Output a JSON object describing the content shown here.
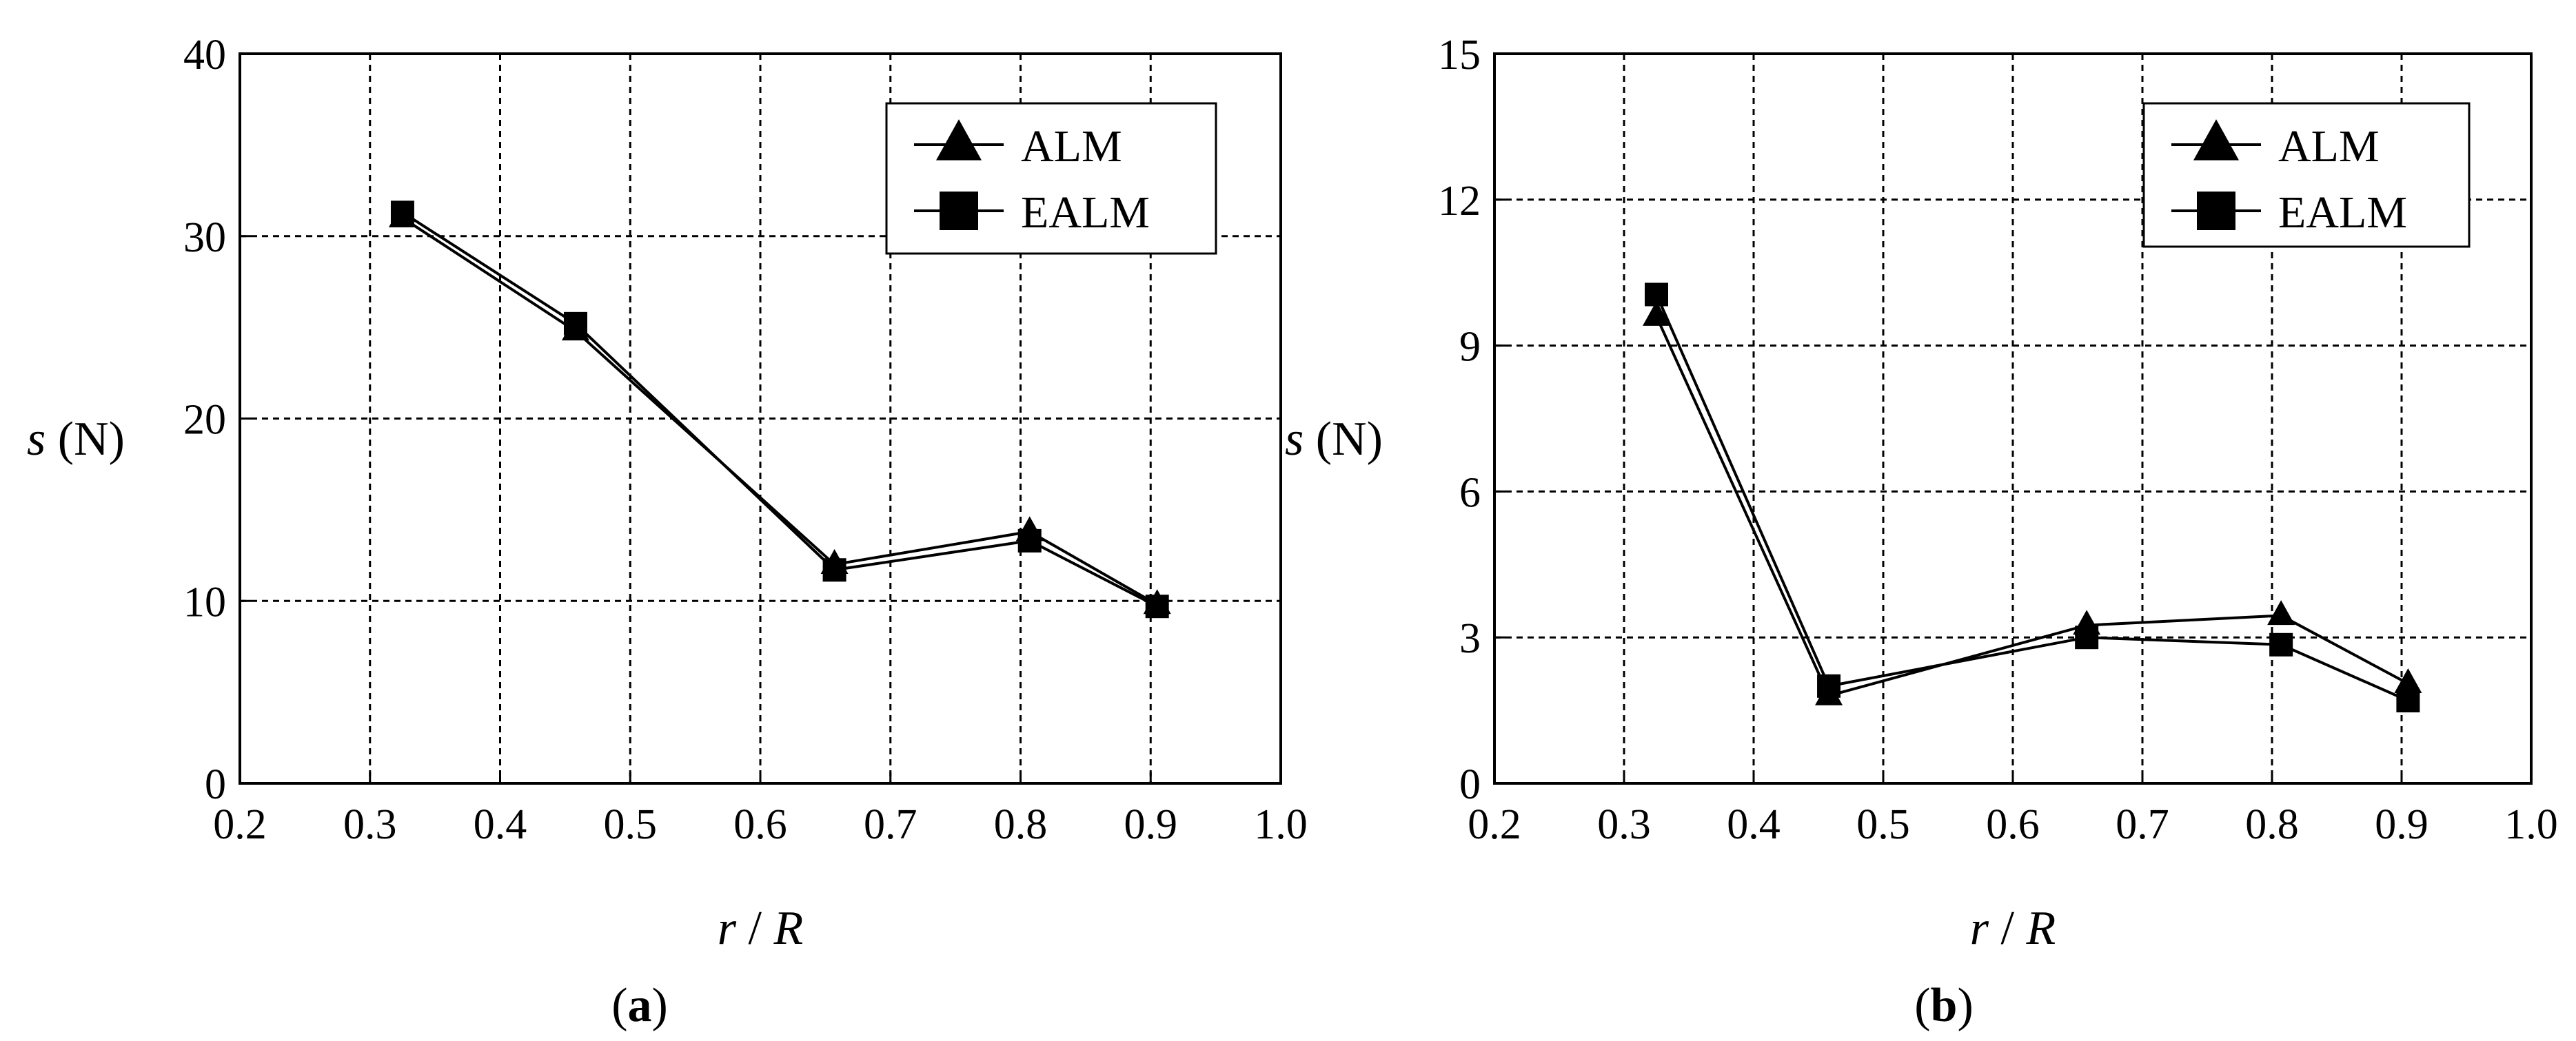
{
  "chart_data": [
    {
      "type": "line",
      "panel_label": "a",
      "xlabel": {
        "var": "r",
        "sep": " / ",
        "var2": "R"
      },
      "ylabel": {
        "var": "s",
        "unit": " (N)"
      },
      "xlim": [
        0.2,
        1.0
      ],
      "ylim": [
        0,
        40
      ],
      "xticks": [
        "0.2",
        "0.3",
        "0.4",
        "0.5",
        "0.6",
        "0.7",
        "0.8",
        "0.9",
        "1.0"
      ],
      "yticks": [
        "0",
        "10",
        "20",
        "30",
        "40"
      ],
      "grid": true,
      "legend_position": "top-right",
      "series": [
        {
          "name": "ALM",
          "marker": "triangle",
          "x": [
            0.325,
            0.458,
            0.657,
            0.807,
            0.905
          ],
          "values": [
            31.0,
            24.8,
            12.0,
            13.8,
            9.8
          ]
        },
        {
          "name": "EALM",
          "marker": "square",
          "x": [
            0.325,
            0.458,
            0.657,
            0.807,
            0.905
          ],
          "values": [
            31.3,
            25.2,
            11.7,
            13.3,
            9.7
          ]
        }
      ]
    },
    {
      "type": "line",
      "panel_label": "b",
      "xlabel": {
        "var": "r",
        "sep": " / ",
        "var2": "R"
      },
      "ylabel": {
        "var": "s",
        "unit": " (N)"
      },
      "xlim": [
        0.2,
        1.0
      ],
      "ylim": [
        0,
        15
      ],
      "xticks": [
        "0.2",
        "0.3",
        "0.4",
        "0.5",
        "0.6",
        "0.7",
        "0.8",
        "0.9",
        "1.0"
      ],
      "yticks": [
        "0",
        "3",
        "6",
        "9",
        "12",
        "15"
      ],
      "grid": true,
      "legend_position": "top-right",
      "series": [
        {
          "name": "ALM",
          "marker": "triangle",
          "x": [
            0.325,
            0.458,
            0.657,
            0.807,
            0.905
          ],
          "values": [
            9.6,
            1.8,
            3.25,
            3.45,
            2.05
          ]
        },
        {
          "name": "EALM",
          "marker": "square",
          "x": [
            0.325,
            0.458,
            0.657,
            0.807,
            0.905
          ],
          "values": [
            10.05,
            2.0,
            3.0,
            2.85,
            1.7
          ]
        }
      ]
    }
  ]
}
